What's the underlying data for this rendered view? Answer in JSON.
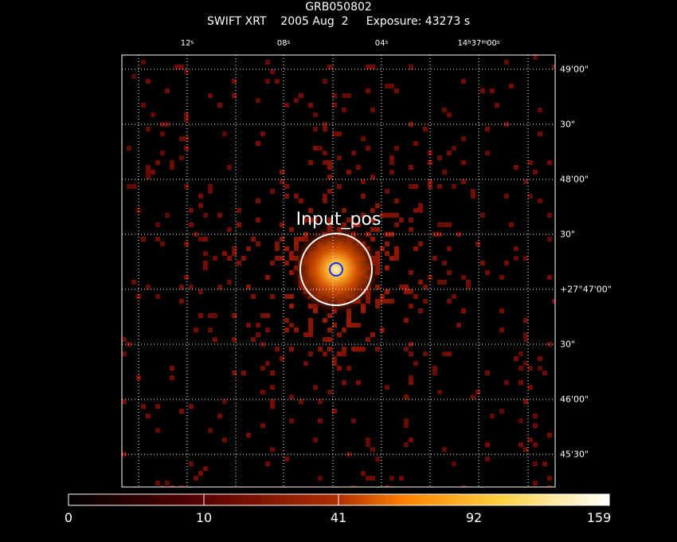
{
  "header": {
    "title": "GRB050802",
    "subtitle": "SWIFT XRT    2005 Aug  2     Exposure: 43273 s"
  },
  "ra_ticks": [
    {
      "value": "12",
      "unit": "s"
    },
    {
      "value": "08",
      "unit": "s"
    },
    {
      "value": "04",
      "unit": "s"
    },
    {
      "value": "14h37m00s",
      "unit": ""
    }
  ],
  "dec_ticks": [
    "49'00\"",
    "30\"",
    "48'00\"",
    "30\"",
    "+27°47'00\"",
    "30\"",
    "46'00\"",
    "45'30\""
  ],
  "region": {
    "label": "Input_pos",
    "color": "#ffffff",
    "marker_color": "#1030ff"
  },
  "colorbar": {
    "ticks": [
      "0",
      "10",
      "41",
      "92",
      "159"
    ],
    "colors": [
      "#000000",
      "#5a0000",
      "#b03000",
      "#ff8000",
      "#ffd040",
      "#ffffff"
    ]
  },
  "grid": true
}
